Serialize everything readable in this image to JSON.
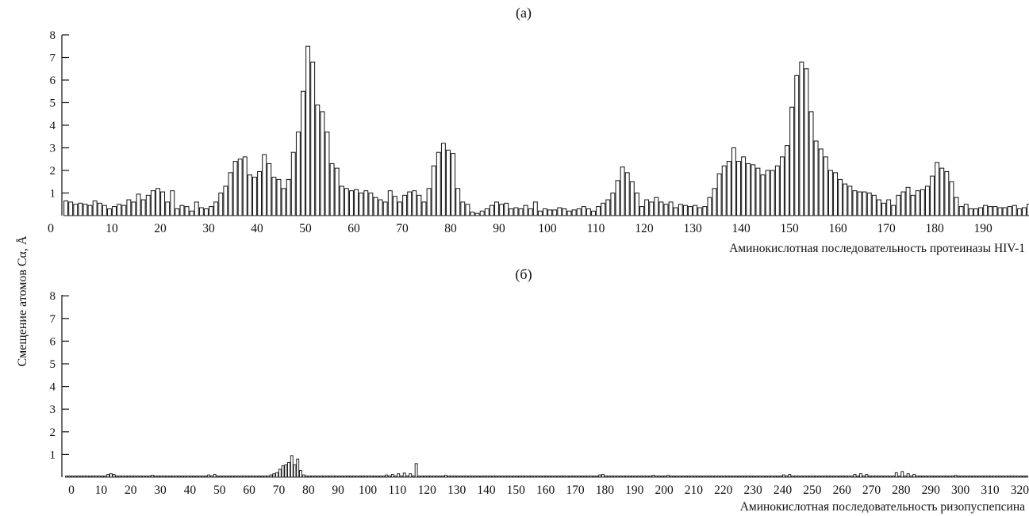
{
  "figure": {
    "ylabel": "Смещение атомов Cα, Å"
  },
  "chart_data": [
    {
      "type": "bar",
      "panel_label": "(а)",
      "xlabel": "Аминокислотная последовательность протеиназы HIV-1",
      "ylabel": "Смещение атомов Cα, Å",
      "xlim": [
        0,
        199
      ],
      "ylim": [
        0,
        8
      ],
      "x_ticks": [
        10,
        20,
        30,
        40,
        50,
        60,
        70,
        80,
        90,
        100,
        110,
        120,
        130,
        140,
        150,
        160,
        170,
        180,
        190
      ],
      "x_origin_label": "0",
      "y_ticks": [
        1,
        2,
        3,
        4,
        5,
        6,
        7,
        8
      ],
      "grid": false,
      "bar_fill": "#ffffff",
      "bar_stroke": "#111111",
      "values": [
        0.65,
        0.6,
        0.5,
        0.55,
        0.5,
        0.45,
        0.65,
        0.55,
        0.45,
        0.3,
        0.4,
        0.5,
        0.45,
        0.7,
        0.6,
        0.95,
        0.7,
        0.9,
        1.1,
        1.2,
        1.05,
        0.6,
        1.1,
        0.3,
        0.45,
        0.4,
        0.2,
        0.6,
        0.35,
        0.3,
        0.4,
        0.6,
        1.0,
        1.3,
        1.9,
        2.4,
        2.5,
        2.6,
        1.8,
        1.7,
        1.95,
        2.7,
        2.3,
        1.7,
        1.6,
        1.2,
        1.6,
        2.8,
        3.7,
        5.5,
        7.5,
        6.8,
        4.9,
        4.6,
        3.7,
        2.3,
        2.1,
        1.3,
        1.2,
        1.1,
        1.15,
        1.0,
        1.1,
        1.0,
        0.8,
        0.7,
        0.6,
        1.1,
        0.85,
        0.6,
        0.9,
        1.05,
        1.1,
        0.9,
        0.6,
        1.2,
        2.2,
        2.8,
        3.2,
        2.9,
        2.75,
        1.2,
        0.6,
        0.5,
        0.15,
        0.1,
        0.2,
        0.3,
        0.45,
        0.6,
        0.5,
        0.55,
        0.3,
        0.35,
        0.3,
        0.45,
        0.3,
        0.6,
        0.2,
        0.3,
        0.25,
        0.25,
        0.35,
        0.3,
        0.2,
        0.25,
        0.3,
        0.4,
        0.3,
        0.2,
        0.4,
        0.55,
        0.7,
        1.0,
        1.55,
        2.15,
        1.9,
        1.5,
        1.0,
        0.4,
        0.7,
        0.6,
        0.8,
        0.6,
        0.5,
        0.6,
        0.35,
        0.5,
        0.45,
        0.4,
        0.45,
        0.35,
        0.4,
        0.8,
        1.2,
        1.85,
        2.2,
        2.4,
        3.0,
        2.4,
        2.6,
        2.3,
        2.25,
        2.1,
        1.8,
        2.0,
        2.0,
        2.2,
        2.6,
        3.1,
        4.8,
        6.2,
        6.8,
        6.5,
        4.6,
        3.3,
        2.95,
        2.6,
        2.0,
        1.9,
        1.6,
        1.4,
        1.3,
        1.1,
        1.05,
        1.05,
        1.0,
        0.9,
        0.7,
        0.55,
        0.7,
        0.45,
        0.9,
        1.05,
        1.25,
        0.9,
        1.1,
        1.15,
        1.3,
        1.75,
        2.35,
        2.1,
        1.95,
        1.5,
        0.8,
        0.4,
        0.5,
        0.3,
        0.3,
        0.35,
        0.45,
        0.4,
        0.4,
        0.35,
        0.35,
        0.4,
        0.45,
        0.3,
        0.35,
        0.5
      ]
    },
    {
      "type": "bar",
      "panel_label": "(б)",
      "xlabel": "Аминокислотная последовательность ризопуспепсина",
      "ylabel": "Смещение атомов Cα, Å",
      "xlim": [
        0,
        325
      ],
      "ylim": [
        0,
        8
      ],
      "x_ticks": [
        0,
        10,
        20,
        30,
        40,
        50,
        60,
        70,
        80,
        90,
        100,
        110,
        120,
        130,
        140,
        150,
        160,
        170,
        180,
        190,
        200,
        210,
        220,
        230,
        240,
        250,
        260,
        270,
        280,
        290,
        300,
        310,
        320
      ],
      "y_ticks": [
        1,
        2,
        3,
        4,
        5,
        6,
        7,
        8
      ],
      "grid": false,
      "bar_fill": "#ffffff",
      "bar_stroke": "#111111",
      "baseline_value": 0.05,
      "spikes": [
        {
          "x": 14,
          "value": 0.12
        },
        {
          "x": 15,
          "value": 0.15
        },
        {
          "x": 16,
          "value": 0.12
        },
        {
          "x": 29,
          "value": 0.08
        },
        {
          "x": 48,
          "value": 0.1
        },
        {
          "x": 50,
          "value": 0.12
        },
        {
          "x": 69,
          "value": 0.1
        },
        {
          "x": 70,
          "value": 0.15
        },
        {
          "x": 71,
          "value": 0.2
        },
        {
          "x": 72,
          "value": 0.35
        },
        {
          "x": 73,
          "value": 0.5
        },
        {
          "x": 74,
          "value": 0.55
        },
        {
          "x": 75,
          "value": 0.65
        },
        {
          "x": 76,
          "value": 0.95
        },
        {
          "x": 77,
          "value": 0.55
        },
        {
          "x": 78,
          "value": 0.8
        },
        {
          "x": 79,
          "value": 0.3
        },
        {
          "x": 80,
          "value": 0.1
        },
        {
          "x": 108,
          "value": 0.1
        },
        {
          "x": 110,
          "value": 0.12
        },
        {
          "x": 112,
          "value": 0.15
        },
        {
          "x": 114,
          "value": 0.18
        },
        {
          "x": 116,
          "value": 0.15
        },
        {
          "x": 118,
          "value": 0.6
        },
        {
          "x": 128,
          "value": 0.08
        },
        {
          "x": 180,
          "value": 0.1
        },
        {
          "x": 181,
          "value": 0.12
        },
        {
          "x": 198,
          "value": 0.08
        },
        {
          "x": 203,
          "value": 0.08
        },
        {
          "x": 242,
          "value": 0.1
        },
        {
          "x": 244,
          "value": 0.12
        },
        {
          "x": 266,
          "value": 0.12
        },
        {
          "x": 268,
          "value": 0.15
        },
        {
          "x": 270,
          "value": 0.12
        },
        {
          "x": 280,
          "value": 0.2
        },
        {
          "x": 282,
          "value": 0.25
        },
        {
          "x": 284,
          "value": 0.15
        },
        {
          "x": 286,
          "value": 0.12
        },
        {
          "x": 300,
          "value": 0.08
        }
      ]
    }
  ]
}
